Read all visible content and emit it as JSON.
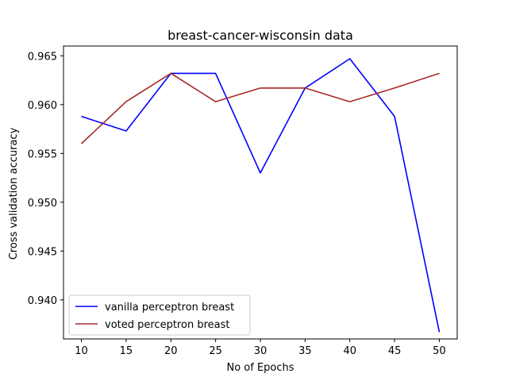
{
  "chart_data": {
    "type": "line",
    "title": "breast-cancer-wisconsin data",
    "xlabel": "No of Epochs",
    "ylabel": "Cross validation accuracy",
    "x": [
      10,
      15,
      20,
      25,
      30,
      35,
      40,
      45,
      50
    ],
    "xlim": [
      8,
      52
    ],
    "ylim": [
      0.936,
      0.966
    ],
    "xticks": [
      10,
      15,
      20,
      25,
      30,
      35,
      40,
      45,
      50
    ],
    "xtick_labels": [
      "10",
      "15",
      "20",
      "25",
      "30",
      "35",
      "40",
      "45",
      "50"
    ],
    "yticks": [
      0.94,
      0.945,
      0.95,
      0.955,
      0.96,
      0.965
    ],
    "ytick_labels": [
      "0.940",
      "0.945",
      "0.950",
      "0.955",
      "0.960",
      "0.965"
    ],
    "grid": false,
    "legend_position": "lower-left",
    "series": [
      {
        "name": "vanilla perceptron breast",
        "color": "#0000ff",
        "values": [
          0.9588,
          0.9573,
          0.9632,
          0.9632,
          0.953,
          0.9617,
          0.9647,
          0.9588,
          0.9367
        ]
      },
      {
        "name": "voted perceptron breast",
        "color": "#a52a2a",
        "values": [
          0.956,
          0.9603,
          0.9632,
          0.9603,
          0.9617,
          0.9617,
          0.9603,
          0.9617,
          0.9632
        ]
      }
    ]
  }
}
